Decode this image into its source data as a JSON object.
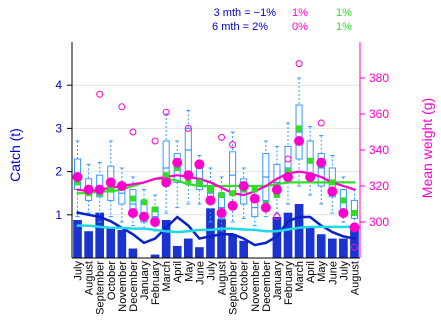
{
  "chart_data": {
    "type": "bar",
    "categories": [
      "July",
      "August",
      "September",
      "October",
      "November",
      "December",
      "January",
      "February",
      "March",
      "April",
      "May",
      "June",
      "July",
      "August",
      "September",
      "October",
      "November",
      "December",
      "January",
      "February",
      "March",
      "April",
      "May",
      "June",
      "July",
      "August"
    ],
    "catch_bars": [
      0.88,
      0.62,
      1.05,
      0.72,
      0.65,
      0.22,
      0.0,
      0.08,
      0.88,
      0.28,
      0.45,
      0.25,
      1.15,
      0.9,
      0.55,
      0.4,
      0.0,
      0.0,
      0.95,
      1.05,
      1.25,
      0.7,
      0.55,
      0.45,
      0.45,
      0.7
    ],
    "catch_line_dark": [
      1.05,
      1.0,
      0.95,
      0.85,
      0.7,
      0.55,
      0.35,
      0.45,
      0.7,
      0.95,
      0.75,
      0.45,
      0.5,
      0.55,
      0.55,
      0.45,
      0.3,
      0.35,
      0.5,
      0.85,
      0.95,
      0.95,
      0.75,
      0.6,
      0.5,
      0.45
    ],
    "catch_line_cyan": [
      0.75,
      0.75,
      0.72,
      0.7,
      0.7,
      0.68,
      0.68,
      0.65,
      0.62,
      0.6,
      0.62,
      0.65,
      0.65,
      0.68,
      0.68,
      0.66,
      0.65,
      0.62,
      0.62,
      0.66,
      0.7,
      0.72,
      0.72,
      0.72,
      0.72,
      0.72
    ],
    "weight_box": [
      {
        "lo": 303,
        "q1": 318,
        "med": 325,
        "q3": 335,
        "hi": 345
      },
      {
        "lo": 305,
        "q1": 312,
        "med": 318,
        "q3": 324,
        "hi": 332
      },
      {
        "lo": 300,
        "q1": 314,
        "med": 320,
        "q3": 326,
        "hi": 333
      },
      {
        "lo": 303,
        "q1": 312,
        "med": 318,
        "q3": 331,
        "hi": 345
      },
      {
        "lo": 300,
        "q1": 310,
        "med": 316,
        "q3": 322,
        "hi": 330
      },
      {
        "lo": 298,
        "q1": 305,
        "med": 310,
        "q3": 318,
        "hi": 325
      },
      {
        "lo": 296,
        "q1": 300,
        "med": 305,
        "q3": 312,
        "hi": 318
      },
      {
        "lo": 295,
        "q1": 298,
        "med": 303,
        "q3": 308,
        "hi": 315
      },
      {
        "lo": 305,
        "q1": 320,
        "med": 330,
        "q3": 345,
        "hi": 360
      },
      {
        "lo": 308,
        "q1": 322,
        "med": 330,
        "q3": 338,
        "hi": 345
      },
      {
        "lo": 310,
        "q1": 325,
        "med": 340,
        "q3": 352,
        "hi": 362
      },
      {
        "lo": 310,
        "q1": 318,
        "med": 324,
        "q3": 330,
        "hi": 337
      },
      {
        "lo": 300,
        "q1": 310,
        "med": 316,
        "q3": 322,
        "hi": 330
      },
      {
        "lo": 295,
        "q1": 302,
        "med": 308,
        "q3": 316,
        "hi": 325
      },
      {
        "lo": 300,
        "q1": 315,
        "med": 326,
        "q3": 339,
        "hi": 350
      },
      {
        "lo": 302,
        "q1": 310,
        "med": 318,
        "q3": 324,
        "hi": 330
      },
      {
        "lo": 298,
        "q1": 303,
        "med": 308,
        "q3": 312,
        "hi": 317
      },
      {
        "lo": 303,
        "q1": 312,
        "med": 325,
        "q3": 338,
        "hi": 345
      },
      {
        "lo": 305,
        "q1": 315,
        "med": 322,
        "q3": 332,
        "hi": 342
      },
      {
        "lo": 310,
        "q1": 322,
        "med": 330,
        "q3": 342,
        "hi": 355
      },
      {
        "lo": 320,
        "q1": 335,
        "med": 350,
        "q3": 365,
        "hi": 380
      },
      {
        "lo": 315,
        "q1": 325,
        "med": 335,
        "q3": 345,
        "hi": 353
      },
      {
        "lo": 310,
        "q1": 320,
        "med": 330,
        "q3": 338,
        "hi": 348
      },
      {
        "lo": 305,
        "q1": 314,
        "med": 322,
        "q3": 330,
        "hi": 337
      },
      {
        "lo": 300,
        "q1": 305,
        "med": 312,
        "q3": 318,
        "hi": 325
      },
      {
        "lo": 298,
        "q1": 302,
        "med": 306,
        "q3": 312,
        "hi": 318
      }
    ],
    "weight_mean_points": [
      325,
      318,
      318,
      322,
      320,
      305,
      303,
      300,
      322,
      333,
      326,
      332,
      312,
      305,
      309,
      320,
      313,
      308,
      318,
      325,
      345,
      325,
      333,
      317,
      305,
      297
    ],
    "weight_green_points": [
      322,
      316,
      316,
      318,
      320,
      313,
      311,
      307,
      326,
      330,
      322,
      322,
      318,
      315,
      316,
      318,
      318,
      310,
      315,
      328,
      352,
      334,
      332,
      322,
      312,
      305
    ],
    "weight_outliers": [
      {
        "i": 2,
        "v": 371
      },
      {
        "i": 3,
        "v": 322
      },
      {
        "i": 4,
        "v": 364
      },
      {
        "i": 5,
        "v": 350
      },
      {
        "i": 7,
        "v": 345
      },
      {
        "i": 8,
        "v": 361
      },
      {
        "i": 10,
        "v": 352
      },
      {
        "i": 13,
        "v": 347
      },
      {
        "i": 14,
        "v": 343
      },
      {
        "i": 18,
        "v": 303
      },
      {
        "i": 19,
        "v": 335
      },
      {
        "i": 20,
        "v": 388
      },
      {
        "i": 22,
        "v": 355
      },
      {
        "i": 25,
        "v": 286
      }
    ],
    "weight_line_magenta": [
      318,
      317,
      318,
      319,
      320,
      321,
      322,
      324,
      325,
      326,
      325,
      324,
      322,
      319,
      316,
      315,
      317,
      320,
      324,
      327,
      328,
      327,
      325,
      322,
      320,
      318
    ],
    "weight_line_green": [
      316,
      316,
      317,
      317,
      318,
      320,
      322,
      324,
      324,
      323,
      321,
      320,
      320,
      320,
      320,
      320,
      320,
      320,
      321,
      322,
      322,
      322,
      322,
      322,
      322,
      322
    ],
    "ylim_left": [
      0,
      5
    ],
    "yticks_left": [
      1,
      2,
      3,
      4
    ],
    "ylim_right": [
      280,
      400
    ],
    "yticks_right": [
      300,
      320,
      340,
      360,
      380
    ],
    "ylabel_left": "Catch (t)",
    "ylabel_right": "Mean weight (g)",
    "legend": {
      "row1": {
        "label": "3 mth = −1%",
        "mag": "1%",
        "grn": "1%"
      },
      "row2": {
        "label": "6 mth = 2%",
        "mag": "0%",
        "grn": "1%"
      }
    },
    "colors": {
      "bars": "#1a33d1",
      "dark_line": "#0b22c8",
      "cyan_line": "#20d8e6",
      "box": "#3399ff",
      "magenta": "#ff00cc",
      "green": "#33dd22",
      "axis_left": "#0000cc",
      "axis_right": "#ff00cc"
    }
  }
}
